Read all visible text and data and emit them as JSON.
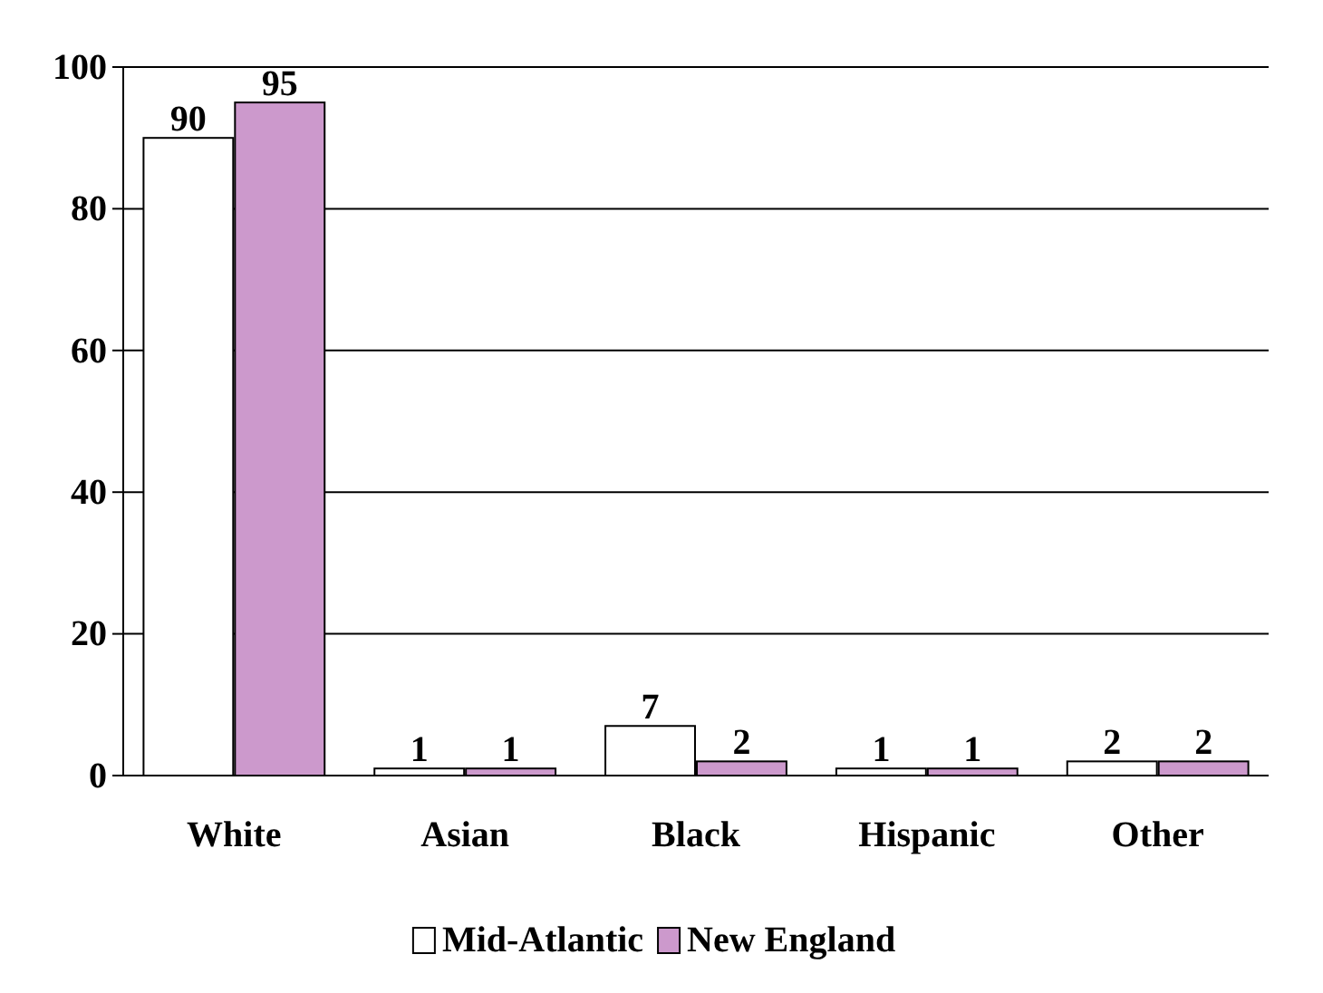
{
  "chart_data": {
    "type": "bar",
    "categories": [
      "White",
      "Asian",
      "Black",
      "Hispanic",
      "Other"
    ],
    "series": [
      {
        "name": "Mid-Atlantic",
        "color": "#ffffff",
        "values": [
          90,
          1,
          7,
          1,
          2
        ]
      },
      {
        "name": "New England",
        "color": "#cc99cc",
        "values": [
          95,
          1,
          2,
          1,
          2
        ]
      }
    ],
    "ylim": [
      0,
      100
    ],
    "yticks": [
      0,
      20,
      40,
      60,
      80,
      100
    ],
    "grid": "y",
    "legend": "bottom",
    "data_labels": true
  }
}
